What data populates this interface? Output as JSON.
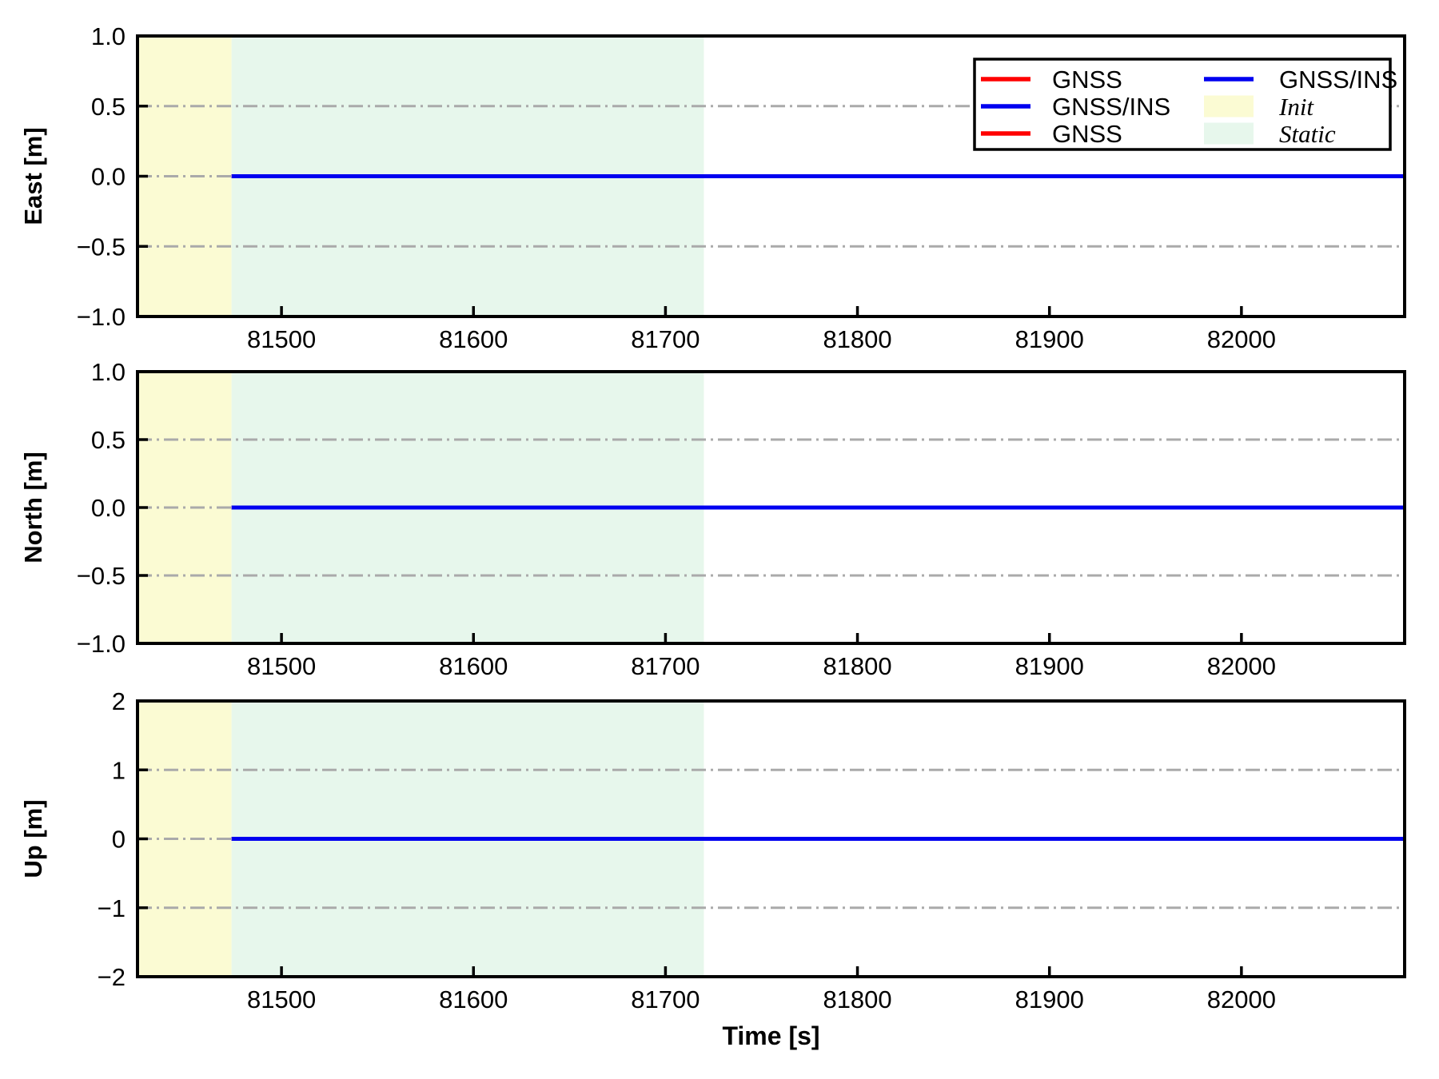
{
  "figure": {
    "background": "#ffffff",
    "xlabel": "Time [s]"
  },
  "chart_data": {
    "type": "line",
    "xlabel": "Time [s]",
    "xlim": [
      81425,
      82085
    ],
    "x_ticks": [
      81500,
      81600,
      81700,
      81800,
      81900,
      82000
    ],
    "x_tick_labels": [
      "81500",
      "81600",
      "81700",
      "81800",
      "81900",
      "82000"
    ],
    "grid": "horizontal, dash-dot, gray",
    "grid_color": "#aaaaaa",
    "regions": [
      {
        "label": "Init",
        "x0": 81425,
        "x1": 81474,
        "color": "#fbfbd3"
      },
      {
        "label": "Static",
        "x0": 81474,
        "x1": 81720,
        "color": "#e7f7ec"
      }
    ],
    "series": [
      {
        "name": "GNSS",
        "color": "#ff0000",
        "x": [
          81474,
          82085
        ],
        "y_constant": 0
      },
      {
        "name": "GNSS/INS",
        "color": "#0000f0",
        "x": [
          81474,
          82085
        ],
        "y_constant": 0
      }
    ],
    "subplots": [
      {
        "ylabel": "East [m]",
        "ylim": [
          -1.0,
          1.0
        ],
        "y_ticks": [
          1.0,
          0.5,
          0.0,
          -0.5,
          -1.0
        ],
        "y_tick_labels": [
          "1.0",
          "0.5",
          "0.0",
          "−0.5",
          "−1.0"
        ],
        "grid_y": [
          0.5,
          0.0,
          -0.5
        ]
      },
      {
        "ylabel": "North [m]",
        "ylim": [
          -1.0,
          1.0
        ],
        "y_ticks": [
          1.0,
          0.5,
          0.0,
          -0.5,
          -1.0
        ],
        "y_tick_labels": [
          "1.0",
          "0.5",
          "0.0",
          "−0.5",
          "−1.0"
        ],
        "grid_y": [
          0.5,
          0.0,
          -0.5
        ]
      },
      {
        "ylabel": "Up [m]",
        "ylim": [
          -2,
          2
        ],
        "y_ticks": [
          2,
          1,
          0,
          -1,
          -2
        ],
        "y_tick_labels": [
          "2",
          "1",
          "0",
          "−1",
          "−2"
        ],
        "grid_y": [
          1,
          0,
          -1
        ]
      }
    ],
    "legend": {
      "ncols": 2,
      "position": "upper right of first subplot",
      "entries": [
        {
          "label": "GNSS",
          "swatch": "line",
          "color": "#ff0000",
          "italic": false
        },
        {
          "label": "GNSS/INS",
          "swatch": "line",
          "color": "#0000f0",
          "italic": false
        },
        {
          "label": "GNSS",
          "swatch": "line",
          "color": "#ff0000",
          "italic": false
        },
        {
          "label": "GNSS/INS",
          "swatch": "line",
          "color": "#0000f0",
          "italic": false
        },
        {
          "label": "Init",
          "swatch": "patch",
          "color": "#fbfbd3",
          "italic": true
        },
        {
          "label": "Static",
          "swatch": "patch",
          "color": "#e7f7ec",
          "italic": true
        }
      ]
    }
  }
}
